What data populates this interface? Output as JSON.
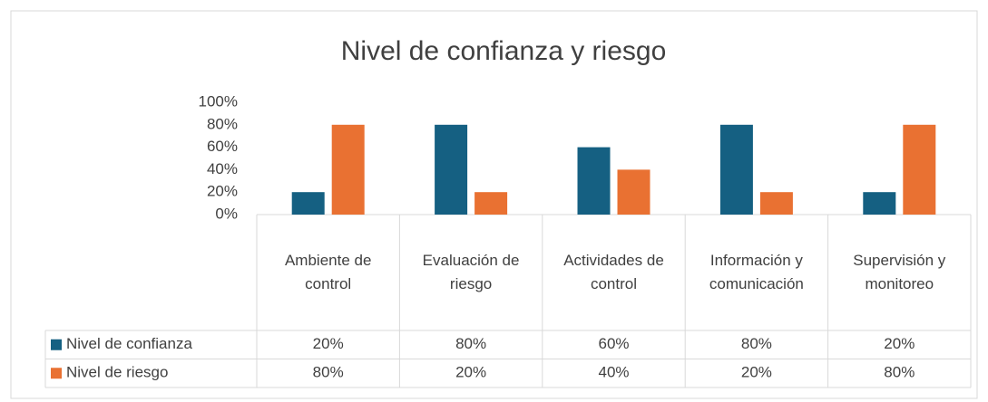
{
  "chart_data": {
    "type": "bar",
    "title": "Nivel de confianza y riesgo",
    "categories": [
      "Ambiente de control",
      "Evaluación de riesgo",
      "Actividades de control",
      "Información y comunicación",
      "Supervisión y monitoreo"
    ],
    "series": [
      {
        "name": "Nivel de confianza",
        "color": "#156082",
        "values": [
          20,
          80,
          60,
          80,
          20
        ],
        "value_labels": [
          "20%",
          "80%",
          "60%",
          "80%",
          "20%"
        ]
      },
      {
        "name": "Nivel de riesgo",
        "color": "#e97132",
        "values": [
          80,
          20,
          40,
          20,
          80
        ],
        "value_labels": [
          "80%",
          "20%",
          "40%",
          "20%",
          "80%"
        ]
      }
    ],
    "ylim": [
      0,
      100
    ],
    "yticks": [
      {
        "value": 0,
        "label": "0%"
      },
      {
        "value": 20,
        "label": "20%"
      },
      {
        "value": 40,
        "label": "40%"
      },
      {
        "value": 60,
        "label": "60%"
      },
      {
        "value": 80,
        "label": "80%"
      },
      {
        "value": 100,
        "label": "100%"
      }
    ],
    "grid": false
  }
}
